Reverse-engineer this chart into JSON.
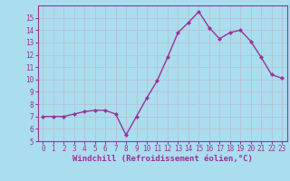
{
  "x": [
    0,
    1,
    2,
    3,
    4,
    5,
    6,
    7,
    8,
    9,
    10,
    11,
    12,
    13,
    14,
    15,
    16,
    17,
    18,
    19,
    20,
    21,
    22,
    23
  ],
  "y": [
    7.0,
    7.0,
    7.0,
    7.2,
    7.4,
    7.5,
    7.5,
    7.2,
    5.5,
    7.0,
    8.5,
    9.9,
    11.8,
    13.8,
    14.6,
    15.5,
    14.2,
    13.3,
    13.8,
    14.0,
    13.1,
    11.8,
    10.4,
    10.1
  ],
  "line_color": "#993399",
  "marker": "D",
  "marker_size": 2,
  "line_width": 1.0,
  "bg_color": "#aaddee",
  "grid_color": "#bbbbcc",
  "xlabel": "Windchill (Refroidissement éolien,°C)",
  "xlabel_color": "#993399",
  "tick_color": "#993399",
  "label_color": "#993399",
  "ylim": [
    5,
    16
  ],
  "xlim": [
    -0.5,
    23.5
  ],
  "yticks": [
    5,
    6,
    7,
    8,
    9,
    10,
    11,
    12,
    13,
    14,
    15
  ],
  "xticks": [
    0,
    1,
    2,
    3,
    4,
    5,
    6,
    7,
    8,
    9,
    10,
    11,
    12,
    13,
    14,
    15,
    16,
    17,
    18,
    19,
    20,
    21,
    22,
    23
  ],
  "tick_fontsize": 5.5,
  "xlabel_fontsize": 6.5,
  "xlabel_fontweight": "bold"
}
